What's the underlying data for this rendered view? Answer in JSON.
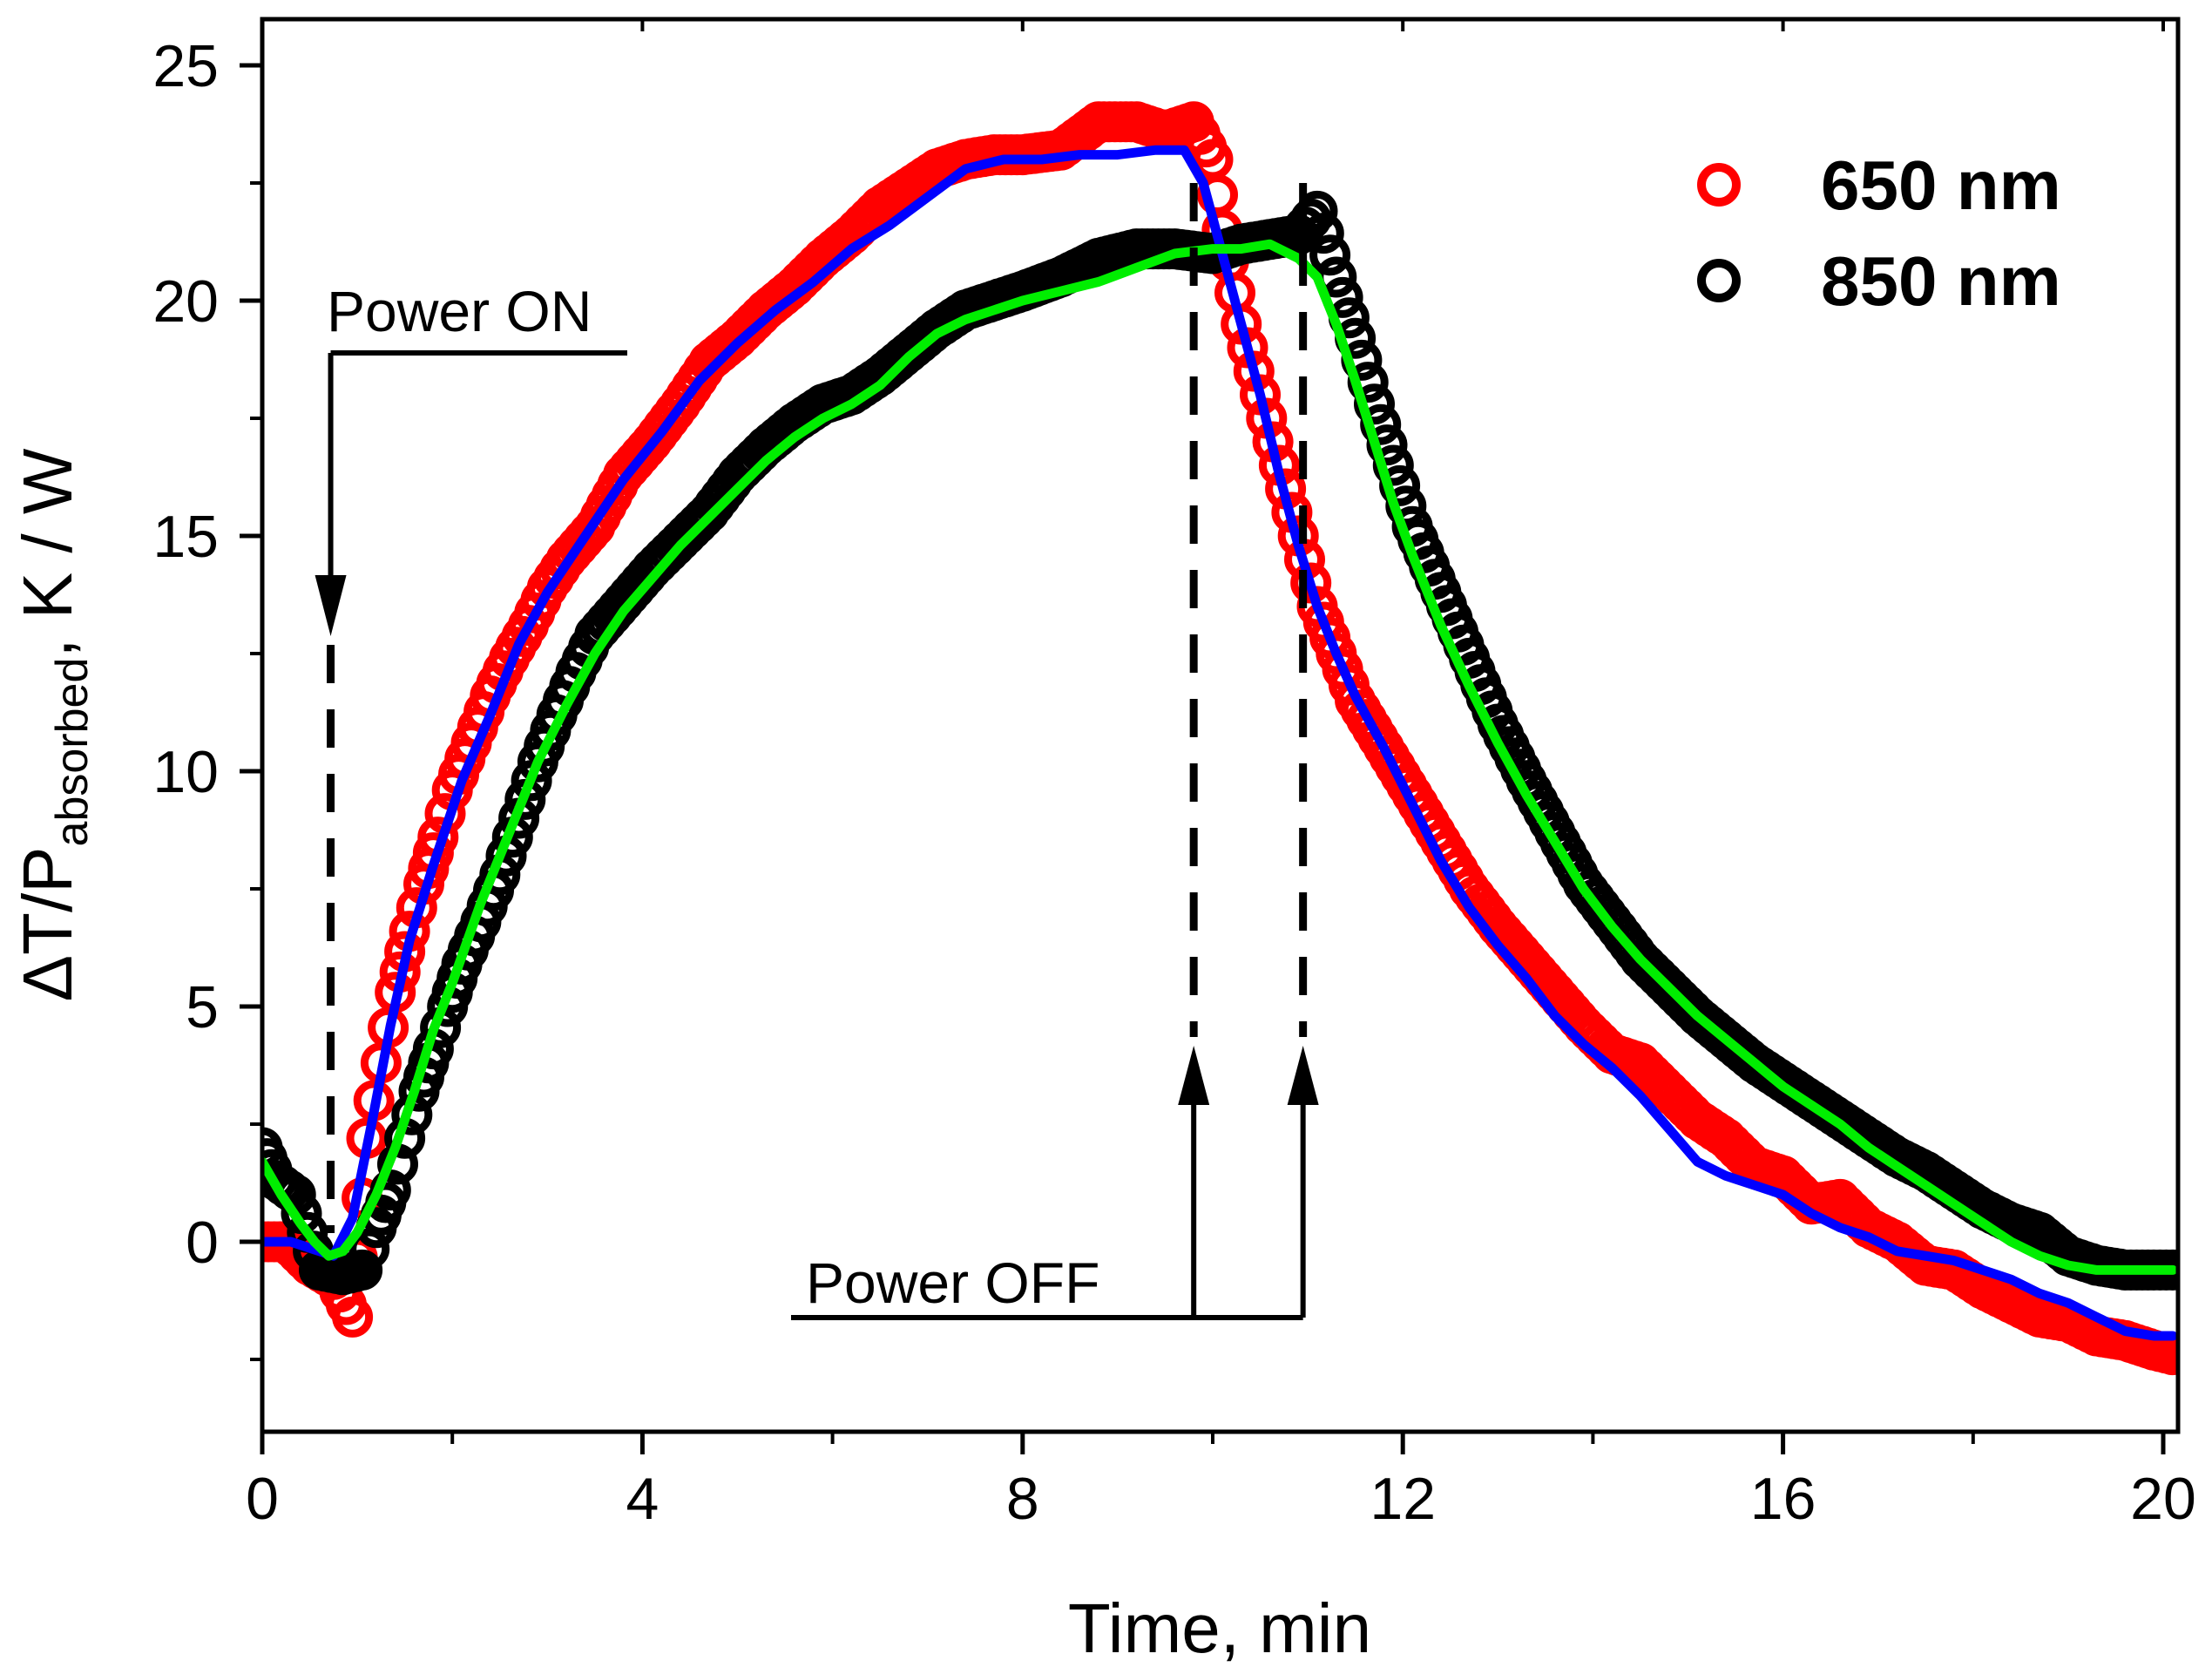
{
  "chart_data": {
    "type": "scatter",
    "xlabel": "Time, min",
    "ylabel": {
      "parts": [
        "ΔT/P",
        "absorbed",
        ", K / W"
      ]
    },
    "xlim": [
      0,
      20.2
    ],
    "ylim": [
      -4,
      25
    ],
    "xticks": [
      0,
      4,
      8,
      12,
      16,
      20
    ],
    "yticks": [
      0,
      5,
      10,
      15,
      20,
      25
    ],
    "x_minor_step": 2,
    "y_minor_step": 2.5,
    "grid": false,
    "legend_position": "top-right",
    "annotations": {
      "power_on": {
        "text": "Power ON",
        "x": 0.72
      },
      "power_off": {
        "text": "Power OFF",
        "x": [
          9.8,
          10.95
        ]
      }
    },
    "series": [
      {
        "name": "650 nm",
        "marker": "open-circle",
        "color": "#ff0000",
        "points": [
          [
            0,
            0
          ],
          [
            0.25,
            0
          ],
          [
            0.5,
            -0.5
          ],
          [
            0.75,
            -0.8
          ],
          [
            0.95,
            -1.6
          ],
          [
            1.1,
            2.2
          ],
          [
            1.25,
            3.8
          ],
          [
            1.4,
            5.3
          ],
          [
            1.55,
            6.6
          ],
          [
            1.7,
            7.6
          ],
          [
            1.85,
            8.6
          ],
          [
            2.0,
            9.6
          ],
          [
            2.2,
            10.6
          ],
          [
            2.4,
            11.6
          ],
          [
            2.6,
            12.4
          ],
          [
            2.8,
            13.1
          ],
          [
            3.0,
            13.9
          ],
          [
            3.2,
            14.5
          ],
          [
            3.5,
            15.2
          ],
          [
            3.8,
            16.3
          ],
          [
            4.1,
            17.0
          ],
          [
            4.4,
            17.8
          ],
          [
            4.7,
            18.7
          ],
          [
            5.0,
            19.2
          ],
          [
            5.3,
            19.8
          ],
          [
            5.6,
            20.3
          ],
          [
            5.9,
            20.9
          ],
          [
            6.2,
            21.4
          ],
          [
            6.5,
            22.0
          ],
          [
            6.8,
            22.4
          ],
          [
            7.1,
            22.8
          ],
          [
            7.4,
            23.0
          ],
          [
            7.7,
            23.1
          ],
          [
            8.0,
            23.1
          ],
          [
            8.4,
            23.2
          ],
          [
            8.8,
            23.8
          ],
          [
            9.2,
            23.8
          ],
          [
            9.5,
            23.6
          ],
          [
            9.8,
            23.8
          ],
          [
            10.0,
            23.0
          ],
          [
            10.1,
            21.5
          ],
          [
            10.3,
            19.5
          ],
          [
            10.5,
            18.0
          ],
          [
            10.7,
            16.5
          ],
          [
            10.9,
            15.0
          ],
          [
            11.1,
            13.5
          ],
          [
            11.3,
            12.5
          ],
          [
            11.5,
            11.5
          ],
          [
            11.8,
            10.5
          ],
          [
            12.1,
            9.5
          ],
          [
            12.4,
            8.5
          ],
          [
            12.7,
            7.5
          ],
          [
            13.0,
            6.7
          ],
          [
            13.3,
            6.0
          ],
          [
            13.6,
            5.3
          ],
          [
            13.9,
            4.6
          ],
          [
            14.2,
            4.0
          ],
          [
            14.5,
            3.8
          ],
          [
            14.8,
            3.2
          ],
          [
            15.1,
            2.6
          ],
          [
            15.4,
            2.2
          ],
          [
            15.7,
            1.6
          ],
          [
            16.0,
            1.4
          ],
          [
            16.3,
            0.8
          ],
          [
            16.6,
            0.9
          ],
          [
            16.9,
            0.3
          ],
          [
            17.2,
            0
          ],
          [
            17.5,
            -0.5
          ],
          [
            17.8,
            -0.6
          ],
          [
            18.1,
            -1.0
          ],
          [
            18.4,
            -1.3
          ],
          [
            18.7,
            -1.6
          ],
          [
            19.0,
            -1.7
          ],
          [
            19.3,
            -2.0
          ],
          [
            19.6,
            -2.1
          ],
          [
            19.9,
            -2.3
          ],
          [
            20.1,
            -2.4
          ]
        ]
      },
      {
        "name": "850 nm",
        "marker": "open-circle",
        "color": "#000000",
        "points": [
          [
            0,
            2.0
          ],
          [
            0.15,
            1.3
          ],
          [
            0.35,
            1.0
          ],
          [
            0.6,
            -0.6
          ],
          [
            0.85,
            -0.7
          ],
          [
            1.05,
            -0.6
          ],
          [
            1.2,
            0.3
          ],
          [
            1.35,
            1.1
          ],
          [
            1.5,
            2.2
          ],
          [
            1.65,
            3.2
          ],
          [
            1.8,
            4.1
          ],
          [
            1.95,
            5.0
          ],
          [
            2.1,
            5.9
          ],
          [
            2.3,
            6.8
          ],
          [
            2.5,
            7.8
          ],
          [
            2.7,
            9.0
          ],
          [
            2.9,
            10.2
          ],
          [
            3.1,
            11.2
          ],
          [
            3.3,
            12.1
          ],
          [
            3.5,
            12.9
          ],
          [
            3.8,
            13.6
          ],
          [
            4.1,
            14.3
          ],
          [
            4.4,
            14.9
          ],
          [
            4.7,
            15.5
          ],
          [
            5.0,
            16.3
          ],
          [
            5.3,
            16.9
          ],
          [
            5.6,
            17.4
          ],
          [
            5.9,
            17.8
          ],
          [
            6.2,
            18.0
          ],
          [
            6.5,
            18.4
          ],
          [
            6.8,
            18.9
          ],
          [
            7.1,
            19.4
          ],
          [
            7.4,
            19.8
          ],
          [
            7.7,
            20.0
          ],
          [
            8.0,
            20.2
          ],
          [
            8.4,
            20.5
          ],
          [
            8.8,
            20.9
          ],
          [
            9.2,
            21.1
          ],
          [
            9.6,
            21.1
          ],
          [
            10.0,
            21.0
          ],
          [
            10.3,
            21.2
          ],
          [
            10.6,
            21.3
          ],
          [
            10.9,
            21.4
          ],
          [
            11.1,
            21.9
          ],
          [
            11.3,
            20.5
          ],
          [
            11.5,
            19.2
          ],
          [
            11.7,
            17.8
          ],
          [
            11.9,
            16.5
          ],
          [
            12.1,
            15.2
          ],
          [
            12.4,
            13.8
          ],
          [
            12.7,
            12.4
          ],
          [
            13.0,
            11.0
          ],
          [
            13.3,
            9.8
          ],
          [
            13.6,
            8.7
          ],
          [
            13.9,
            7.6
          ],
          [
            14.2,
            6.8
          ],
          [
            14.5,
            6.0
          ],
          [
            14.8,
            5.4
          ],
          [
            15.1,
            4.8
          ],
          [
            15.4,
            4.3
          ],
          [
            15.7,
            3.8
          ],
          [
            16.0,
            3.4
          ],
          [
            16.3,
            3.0
          ],
          [
            16.6,
            2.6
          ],
          [
            16.9,
            2.2
          ],
          [
            17.2,
            1.8
          ],
          [
            17.5,
            1.5
          ],
          [
            17.8,
            1.1
          ],
          [
            18.1,
            0.7
          ],
          [
            18.4,
            0.4
          ],
          [
            18.7,
            0.2
          ],
          [
            19.0,
            -0.3
          ],
          [
            19.3,
            -0.5
          ],
          [
            19.6,
            -0.6
          ],
          [
            19.9,
            -0.6
          ],
          [
            20.1,
            -0.6
          ]
        ]
      }
    ],
    "fit_lines": [
      {
        "color": "#0000ff",
        "points": [
          [
            0,
            0
          ],
          [
            0.3,
            0
          ],
          [
            0.6,
            -0.2
          ],
          [
            0.75,
            -0.3
          ],
          [
            0.95,
            0.5
          ],
          [
            1.15,
            2.5
          ],
          [
            1.35,
            4.6
          ],
          [
            1.55,
            6.4
          ],
          [
            1.8,
            8.0
          ],
          [
            2.1,
            9.8
          ],
          [
            2.4,
            11.2
          ],
          [
            2.7,
            12.7
          ],
          [
            3.0,
            13.8
          ],
          [
            3.4,
            15.0
          ],
          [
            3.8,
            16.2
          ],
          [
            4.2,
            17.2
          ],
          [
            4.6,
            18.3
          ],
          [
            5.0,
            19.1
          ],
          [
            5.4,
            19.8
          ],
          [
            5.8,
            20.4
          ],
          [
            6.2,
            21.1
          ],
          [
            6.6,
            21.6
          ],
          [
            7.0,
            22.2
          ],
          [
            7.4,
            22.8
          ],
          [
            7.8,
            23.0
          ],
          [
            8.2,
            23.0
          ],
          [
            8.6,
            23.1
          ],
          [
            9.0,
            23.1
          ],
          [
            9.4,
            23.2
          ],
          [
            9.7,
            23.2
          ],
          [
            9.9,
            22.5
          ],
          [
            10.1,
            21.0
          ],
          [
            10.3,
            19.5
          ],
          [
            10.5,
            18.0
          ],
          [
            10.7,
            16.3
          ],
          [
            10.9,
            14.8
          ],
          [
            11.1,
            13.5
          ],
          [
            11.3,
            12.5
          ],
          [
            11.5,
            11.6
          ],
          [
            11.8,
            10.5
          ],
          [
            12.1,
            9.3
          ],
          [
            12.4,
            8.1
          ],
          [
            12.7,
            7.1
          ],
          [
            13.0,
            6.3
          ],
          [
            13.3,
            5.6
          ],
          [
            13.6,
            4.8
          ],
          [
            13.9,
            4.2
          ],
          [
            14.2,
            3.7
          ],
          [
            14.5,
            3.1
          ],
          [
            14.8,
            2.4
          ],
          [
            15.1,
            1.7
          ],
          [
            15.4,
            1.4
          ],
          [
            15.7,
            1.2
          ],
          [
            16.0,
            1.0
          ],
          [
            16.3,
            0.6
          ],
          [
            16.6,
            0.3
          ],
          [
            16.9,
            0.1
          ],
          [
            17.2,
            -0.2
          ],
          [
            17.5,
            -0.3
          ],
          [
            17.8,
            -0.4
          ],
          [
            18.1,
            -0.6
          ],
          [
            18.4,
            -0.8
          ],
          [
            18.7,
            -1.1
          ],
          [
            19.0,
            -1.3
          ],
          [
            19.3,
            -1.6
          ],
          [
            19.6,
            -1.9
          ],
          [
            19.9,
            -2.0
          ],
          [
            20.1,
            -2.0
          ]
        ]
      },
      {
        "color": "#00ee00",
        "points": [
          [
            0,
            1.7
          ],
          [
            0.2,
            1.0
          ],
          [
            0.4,
            0.4
          ],
          [
            0.55,
            0.0
          ],
          [
            0.7,
            -0.3
          ],
          [
            0.85,
            -0.2
          ],
          [
            1.0,
            0.2
          ],
          [
            1.2,
            1.0
          ],
          [
            1.4,
            2.0
          ],
          [
            1.6,
            3.2
          ],
          [
            1.8,
            4.5
          ],
          [
            2.0,
            5.5
          ],
          [
            2.3,
            7.2
          ],
          [
            2.6,
            8.7
          ],
          [
            2.9,
            10.2
          ],
          [
            3.2,
            11.4
          ],
          [
            3.5,
            12.5
          ],
          [
            3.8,
            13.4
          ],
          [
            4.1,
            14.1
          ],
          [
            4.4,
            14.8
          ],
          [
            4.7,
            15.4
          ],
          [
            5.0,
            16.0
          ],
          [
            5.3,
            16.6
          ],
          [
            5.6,
            17.1
          ],
          [
            5.9,
            17.5
          ],
          [
            6.2,
            17.8
          ],
          [
            6.5,
            18.2
          ],
          [
            6.8,
            18.8
          ],
          [
            7.1,
            19.3
          ],
          [
            7.4,
            19.6
          ],
          [
            7.7,
            19.8
          ],
          [
            8.0,
            20.0
          ],
          [
            8.4,
            20.2
          ],
          [
            8.8,
            20.4
          ],
          [
            9.2,
            20.7
          ],
          [
            9.6,
            21.0
          ],
          [
            10.0,
            21.1
          ],
          [
            10.3,
            21.1
          ],
          [
            10.6,
            21.2
          ],
          [
            10.9,
            20.9
          ],
          [
            11.1,
            20.5
          ],
          [
            11.3,
            19.5
          ],
          [
            11.5,
            18.3
          ],
          [
            11.7,
            17.0
          ],
          [
            11.9,
            15.7
          ],
          [
            12.1,
            14.6
          ],
          [
            12.4,
            13.1
          ],
          [
            12.7,
            11.8
          ],
          [
            13.0,
            10.6
          ],
          [
            13.3,
            9.5
          ],
          [
            13.6,
            8.5
          ],
          [
            13.9,
            7.5
          ],
          [
            14.2,
            6.7
          ],
          [
            14.5,
            6.0
          ],
          [
            14.8,
            5.4
          ],
          [
            15.1,
            4.8
          ],
          [
            15.4,
            4.3
          ],
          [
            15.7,
            3.8
          ],
          [
            16.0,
            3.3
          ],
          [
            16.3,
            2.9
          ],
          [
            16.6,
            2.5
          ],
          [
            16.9,
            2.0
          ],
          [
            17.2,
            1.6
          ],
          [
            17.5,
            1.2
          ],
          [
            17.8,
            0.8
          ],
          [
            18.1,
            0.4
          ],
          [
            18.4,
            0.0
          ],
          [
            18.7,
            -0.3
          ],
          [
            19.0,
            -0.5
          ],
          [
            19.3,
            -0.6
          ],
          [
            19.6,
            -0.6
          ],
          [
            19.9,
            -0.6
          ],
          [
            20.1,
            -0.6
          ]
        ]
      }
    ]
  }
}
